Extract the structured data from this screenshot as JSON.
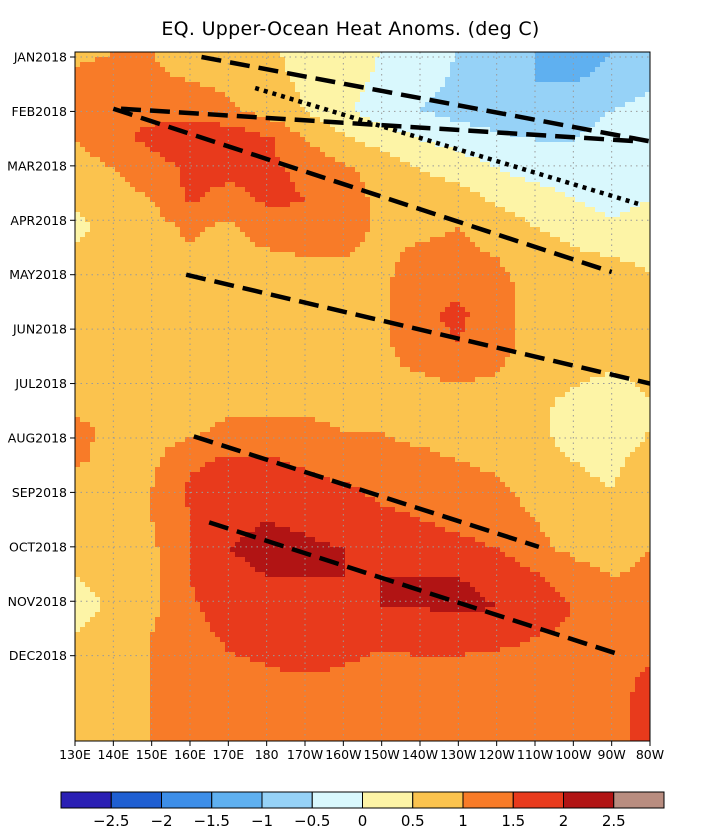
{
  "chart_data": {
    "type": "heatmap",
    "title": "EQ. Upper-Ocean Heat Anoms. (deg C)",
    "xlabel": "",
    "ylabel": "",
    "x_ticks": [
      "130E",
      "140E",
      "150E",
      "160E",
      "170E",
      "180",
      "170W",
      "160W",
      "150W",
      "140W",
      "130W",
      "120W",
      "110W",
      "100W",
      "90W",
      "80W"
    ],
    "x_range_lon": [
      130,
      280
    ],
    "y_ticks": [
      "JAN2018",
      "FEB2018",
      "MAR2018",
      "APR2018",
      "MAY2018",
      "JUN2018",
      "JUL2018",
      "AUG2018",
      "SEP2018",
      "OCT2018",
      "NOV2018",
      "DEC2018"
    ],
    "y_range_month": [
      1,
      12.8
    ],
    "grid": "dotted",
    "colorbar": {
      "levels": [
        -3,
        -2.5,
        -2,
        -1.5,
        -1,
        -0.5,
        0,
        0.5,
        1,
        1.5,
        2,
        2.5,
        3
      ],
      "labels": [
        "−2.5",
        "−2",
        "−1.5",
        "−1",
        "−0.5",
        "0",
        "0.5",
        "1",
        "1.5",
        "2",
        "2.5"
      ],
      "colors": [
        "#2a1fb4",
        "#1f5fd2",
        "#3d8ee8",
        "#5fb0f0",
        "#96d2f7",
        "#d9f8fd",
        "#fdf4a6",
        "#fbc34e",
        "#f87b28",
        "#e83a1c",
        "#b11414",
        "#b98d80"
      ]
    },
    "contour_cells": {
      "lon_start": 130,
      "lon_step": 10,
      "month_start": 1,
      "month_step": 0.5,
      "values": [
        [
          0.8,
          1.0,
          1.0,
          0.7,
          0.7,
          0.6,
          0.3,
          0.2,
          0.0,
          -0.3,
          -0.5,
          -0.8,
          -1.0,
          -1.2,
          -1.0,
          -0.8
        ],
        [
          1.2,
          1.3,
          1.1,
          1.0,
          0.9,
          0.7,
          0.4,
          0.2,
          -0.1,
          -0.3,
          -0.6,
          -0.8,
          -1.0,
          -1.0,
          -0.9,
          -0.6
        ],
        [
          1.2,
          1.5,
          1.4,
          1.3,
          1.1,
          0.8,
          0.5,
          0.1,
          -0.3,
          -0.5,
          -0.7,
          -0.8,
          -0.8,
          -0.6,
          -0.5,
          -0.3
        ],
        [
          1.0,
          1.4,
          1.6,
          1.8,
          1.9,
          1.6,
          1.0,
          0.6,
          0.3,
          0.0,
          -0.2,
          -0.4,
          -0.5,
          -0.5,
          -0.4,
          -0.2
        ],
        [
          0.7,
          1.0,
          1.3,
          1.6,
          1.7,
          1.6,
          1.4,
          1.1,
          0.8,
          0.5,
          0.3,
          0.0,
          -0.2,
          -0.3,
          -0.4,
          -0.2
        ],
        [
          0.6,
          0.8,
          1.0,
          1.6,
          1.3,
          1.6,
          1.5,
          1.2,
          0.9,
          0.8,
          0.7,
          0.4,
          0.2,
          0.0,
          -0.2,
          0.0
        ],
        [
          0.4,
          0.6,
          0.8,
          1.1,
          0.9,
          1.3,
          1.4,
          1.2,
          0.9,
          0.9,
          1.0,
          0.8,
          0.5,
          0.3,
          0.1,
          0.2
        ],
        [
          0.6,
          0.8,
          0.9,
          0.9,
          0.8,
          0.9,
          1.0,
          1.0,
          0.9,
          1.1,
          1.1,
          1.0,
          0.8,
          0.6,
          0.5,
          0.4
        ],
        [
          0.7,
          0.8,
          0.9,
          0.9,
          0.8,
          0.8,
          0.9,
          0.9,
          0.9,
          1.3,
          1.4,
          1.1,
          0.9,
          0.8,
          0.7,
          0.6
        ],
        [
          0.8,
          0.9,
          0.9,
          0.9,
          0.8,
          0.8,
          0.8,
          0.8,
          0.9,
          1.4,
          1.6,
          1.2,
          0.8,
          0.8,
          0.7,
          0.6
        ],
        [
          0.8,
          0.9,
          0.9,
          0.9,
          0.9,
          0.8,
          0.8,
          0.8,
          0.9,
          1.3,
          1.5,
          1.2,
          0.8,
          0.8,
          0.7,
          0.6
        ],
        [
          0.8,
          0.9,
          0.9,
          0.9,
          0.9,
          0.9,
          0.8,
          0.9,
          0.9,
          1.0,
          1.1,
          1.0,
          0.7,
          0.6,
          0.5,
          0.6
        ],
        [
          0.8,
          0.9,
          0.9,
          0.9,
          0.9,
          0.9,
          0.9,
          0.9,
          0.8,
          0.8,
          0.8,
          0.8,
          0.6,
          0.4,
          0.2,
          0.5
        ],
        [
          1.2,
          0.8,
          0.8,
          0.9,
          1.1,
          1.1,
          1.1,
          1.0,
          1.0,
          0.9,
          0.8,
          0.8,
          0.6,
          0.3,
          0.2,
          0.5
        ],
        [
          1.1,
          0.8,
          0.9,
          1.4,
          1.6,
          1.6,
          1.4,
          1.2,
          1.1,
          1.1,
          1.0,
          0.9,
          0.7,
          0.5,
          0.4,
          0.7
        ],
        [
          0.7,
          0.8,
          1.0,
          1.6,
          1.7,
          1.8,
          1.7,
          1.6,
          1.4,
          1.3,
          1.2,
          1.1,
          0.8,
          0.6,
          0.5,
          0.8
        ],
        [
          0.6,
          0.8,
          1.0,
          1.5,
          1.9,
          2.0,
          1.9,
          1.7,
          1.6,
          1.5,
          1.4,
          1.3,
          1.0,
          0.8,
          0.7,
          0.9
        ],
        [
          0.5,
          0.7,
          0.9,
          1.5,
          2.0,
          2.1,
          2.1,
          2.0,
          1.8,
          1.7,
          1.6,
          1.5,
          1.1,
          0.9,
          0.8,
          1.0
        ],
        [
          0.5,
          0.6,
          0.9,
          1.5,
          1.9,
          2.0,
          2.0,
          2.0,
          2.0,
          2.0,
          2.0,
          1.9,
          1.6,
          1.2,
          1.0,
          1.1
        ],
        [
          0.3,
          0.6,
          0.9,
          1.4,
          1.8,
          1.9,
          1.9,
          1.9,
          2.0,
          2.0,
          2.1,
          2.0,
          1.8,
          1.5,
          1.2,
          1.2
        ],
        [
          0.5,
          0.8,
          1.0,
          1.3,
          1.6,
          1.8,
          1.8,
          1.7,
          1.6,
          1.7,
          1.7,
          1.7,
          1.5,
          1.4,
          1.3,
          1.3
        ],
        [
          0.6,
          0.8,
          1.0,
          1.2,
          1.4,
          1.5,
          1.6,
          1.5,
          1.4,
          1.4,
          1.4,
          1.3,
          1.3,
          1.3,
          1.4,
          1.5
        ],
        [
          0.6,
          0.8,
          1.0,
          1.1,
          1.2,
          1.3,
          1.3,
          1.3,
          1.2,
          1.2,
          1.2,
          1.2,
          1.2,
          1.3,
          1.4,
          1.6
        ],
        [
          0.7,
          0.8,
          1.0,
          1.1,
          1.1,
          1.2,
          1.3,
          1.3,
          1.2,
          1.2,
          1.2,
          1.2,
          1.2,
          1.3,
          1.4,
          1.6
        ]
      ]
    },
    "annotations": [
      {
        "style": "dashed",
        "start": {
          "lon": 142,
          "month": 1.95
        },
        "end": {
          "lon": 277,
          "month": 2.55
        }
      },
      {
        "style": "dashed",
        "start": {
          "lon": 163,
          "month": 1.0
        },
        "end": {
          "lon": 280,
          "month": 2.55
        }
      },
      {
        "style": "dotted",
        "start": {
          "lon": 177,
          "month": 1.57
        },
        "end": {
          "lon": 277,
          "month": 3.7
        }
      },
      {
        "style": "dashed",
        "start": {
          "lon": 140,
          "month": 1.95
        },
        "end": {
          "lon": 270,
          "month": 4.95
        }
      },
      {
        "style": "dashed",
        "start": {
          "lon": 159,
          "month": 5.0
        },
        "end": {
          "lon": 280,
          "month": 7.0
        }
      },
      {
        "style": "dashed",
        "start": {
          "lon": 161,
          "month": 7.97
        },
        "end": {
          "lon": 251,
          "month": 10.0
        }
      },
      {
        "style": "dashed",
        "start": {
          "lon": 165,
          "month": 9.55
        },
        "end": {
          "lon": 273,
          "month": 12.0
        }
      }
    ]
  }
}
